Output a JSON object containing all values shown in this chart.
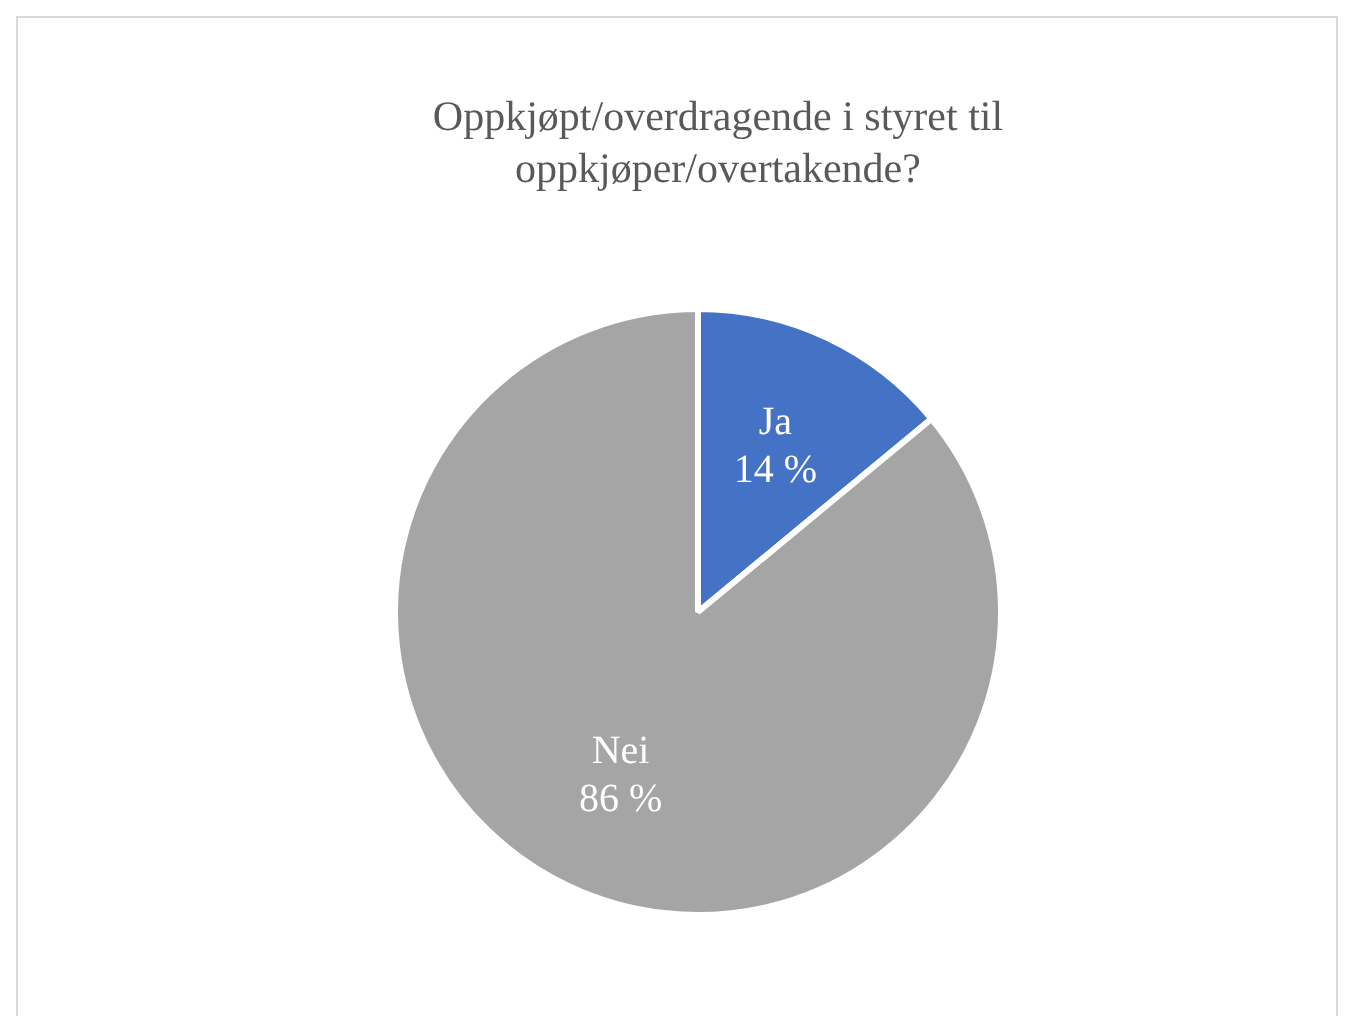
{
  "chart_data": {
    "type": "pie",
    "title": "Oppkjøpt/overdragende i styret til oppkjøper/overtakende?",
    "categories": [
      "Ja",
      "Nei"
    ],
    "values": [
      14,
      86
    ],
    "colors": [
      "#4472c4",
      "#a5a5a5"
    ],
    "value_labels": [
      "14 %",
      "86 %"
    ],
    "legend": false
  }
}
